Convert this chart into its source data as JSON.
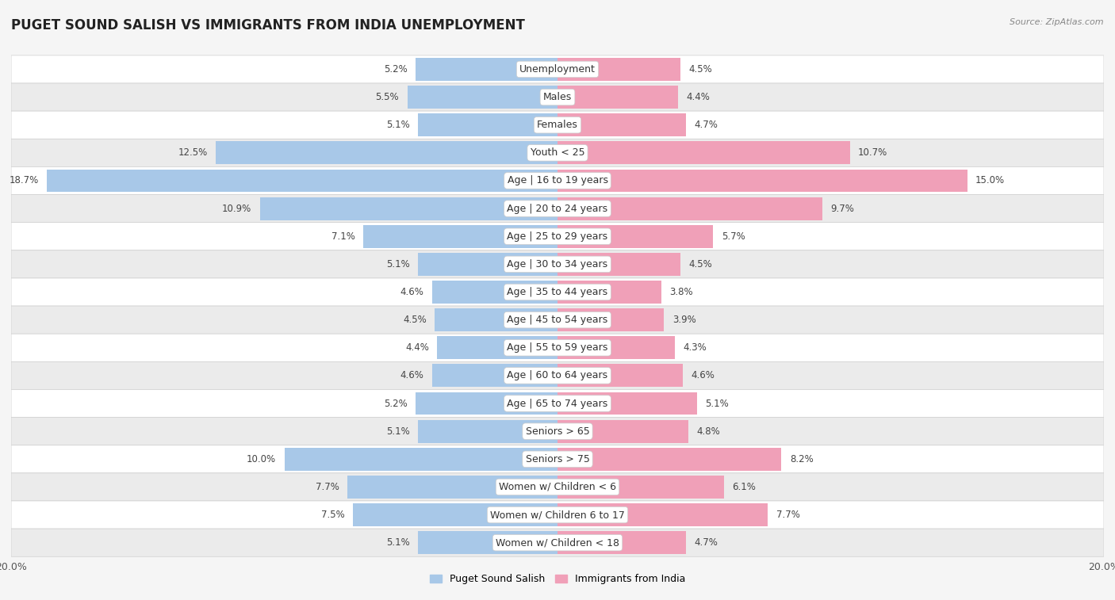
{
  "title": "PUGET SOUND SALISH VS IMMIGRANTS FROM INDIA UNEMPLOYMENT",
  "source": "Source: ZipAtlas.com",
  "categories": [
    "Unemployment",
    "Males",
    "Females",
    "Youth < 25",
    "Age | 16 to 19 years",
    "Age | 20 to 24 years",
    "Age | 25 to 29 years",
    "Age | 30 to 34 years",
    "Age | 35 to 44 years",
    "Age | 45 to 54 years",
    "Age | 55 to 59 years",
    "Age | 60 to 64 years",
    "Age | 65 to 74 years",
    "Seniors > 65",
    "Seniors > 75",
    "Women w/ Children < 6",
    "Women w/ Children 6 to 17",
    "Women w/ Children < 18"
  ],
  "left_values": [
    5.2,
    5.5,
    5.1,
    12.5,
    18.7,
    10.9,
    7.1,
    5.1,
    4.6,
    4.5,
    4.4,
    4.6,
    5.2,
    5.1,
    10.0,
    7.7,
    7.5,
    5.1
  ],
  "right_values": [
    4.5,
    4.4,
    4.7,
    10.7,
    15.0,
    9.7,
    5.7,
    4.5,
    3.8,
    3.9,
    4.3,
    4.6,
    5.1,
    4.8,
    8.2,
    6.1,
    7.7,
    4.7
  ],
  "left_color": "#a8c8e8",
  "right_color": "#f0a0b8",
  "left_label": "Puget Sound Salish",
  "right_label": "Immigrants from India",
  "max_val": 20.0,
  "bg_color": "#f5f5f5",
  "row_color_odd": "#ffffff",
  "row_color_even": "#ebebeb",
  "row_border_color": "#d0d0d0",
  "title_fontsize": 12,
  "label_fontsize": 9,
  "tick_fontsize": 9,
  "bar_height": 0.82,
  "value_label_size": 8.5
}
